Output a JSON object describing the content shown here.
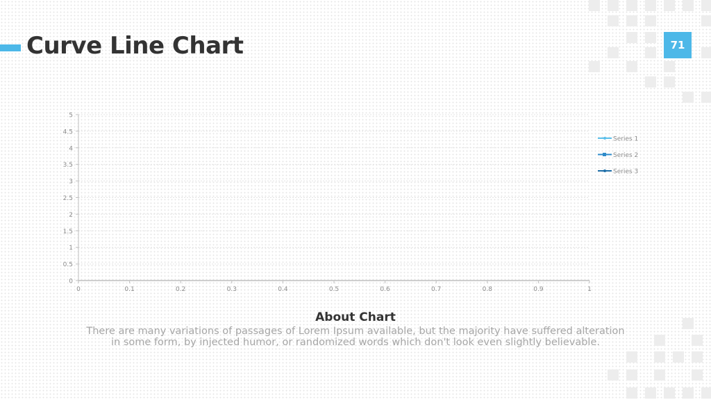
{
  "header": {
    "title": "Curve Line Chart",
    "page_number": "71"
  },
  "chart_data": {
    "type": "line",
    "x_ticks": [
      "0",
      "0.1",
      "0.2",
      "0.3",
      "0.4",
      "0.5",
      "0.6",
      "0.7",
      "0.8",
      "0.9",
      "1"
    ],
    "y_ticks": [
      "0",
      "0.5",
      "1",
      "1.5",
      "2",
      "2.5",
      "3",
      "3.5",
      "4",
      "4.5",
      "5"
    ],
    "xlim": [
      0,
      1
    ],
    "ylim": [
      0,
      5
    ],
    "series": [
      {
        "name": "Series 1",
        "color": "#5bc0eb",
        "values": []
      },
      {
        "name": "Series 2",
        "color": "#2e8bc9",
        "values": []
      },
      {
        "name": "Series 3",
        "color": "#1f6fa8",
        "values": []
      }
    ],
    "legend_position": "right",
    "grid": true
  },
  "about": {
    "title": "About Chart",
    "text": "There are many variations of passages of Lorem Ipsum available, but the majority have suffered alteration in some form, by injected humor, or randomized words which don't look even slightly believable."
  },
  "colors": {
    "accent": "#4db8e8",
    "title": "#333333",
    "body_text": "#a6a6a6"
  }
}
